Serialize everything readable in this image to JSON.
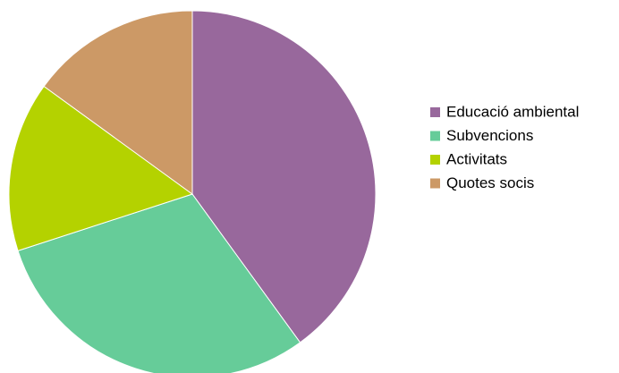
{
  "chart_data": {
    "type": "pie",
    "title": "",
    "legend_position": "right",
    "start_angle_deg": 0,
    "direction": "clockwise",
    "slices": [
      {
        "label": "Educació ambiental",
        "value": 40,
        "color": "#98689C"
      },
      {
        "label": "Subvencions",
        "value": 30,
        "color": "#66CC99"
      },
      {
        "label": "Activitats",
        "value": 15,
        "color": "#B4D200"
      },
      {
        "label": "Quotes socis",
        "value": 15,
        "color": "#CC9966"
      }
    ]
  }
}
